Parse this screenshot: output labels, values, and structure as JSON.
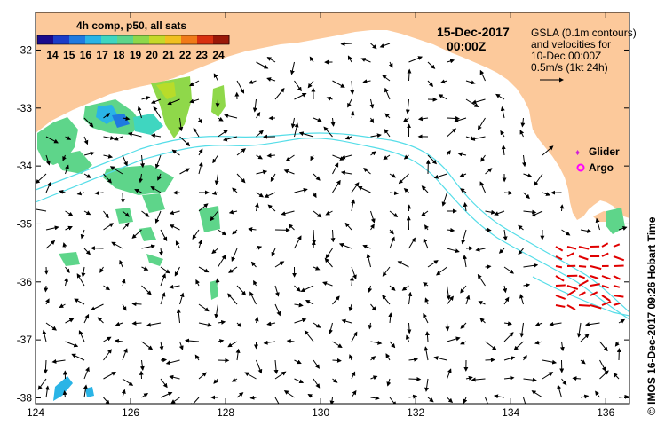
{
  "map": {
    "title_date": "15-Dec-2017",
    "title_time": "00:00Z",
    "colorbar_title": "4h comp, p50, all sats",
    "colorbar_ticks": [
      "14",
      "15",
      "16",
      "17",
      "18",
      "19",
      "20",
      "21",
      "22",
      "23",
      "24"
    ],
    "colorbar_colors": [
      "#1a0a8c",
      "#1b3cc8",
      "#1f7ae0",
      "#2ab4e6",
      "#3fd6c0",
      "#5ed58a",
      "#8fd84a",
      "#c6d928",
      "#f0c020",
      "#f07a18",
      "#d83010",
      "#9a1808"
    ],
    "legend": {
      "line1": "GSLA (0.1m contours)",
      "line2": "and velocities for",
      "line3": "10-Dec 00:00Z",
      "line4": "0.5m/s (1kt 24h)",
      "glider_label": "Glider",
      "argo_label": "Argo"
    },
    "credit": "© IMOS 16-Dec-2017 09:26 Hobart Time",
    "x_ticks": [
      124,
      126,
      128,
      130,
      132,
      134,
      136
    ],
    "y_ticks": [
      -32,
      -33,
      -34,
      -35,
      -36,
      -37,
      -38
    ],
    "x_range": [
      124,
      136.5
    ],
    "y_range": [
      -31.35,
      -38.1
    ],
    "colors": {
      "land": "#fcc99b",
      "contour": "#55dde8",
      "glider": "#d020d8",
      "argo": "#ff00ff",
      "red_vectors": "#e00000"
    }
  }
}
